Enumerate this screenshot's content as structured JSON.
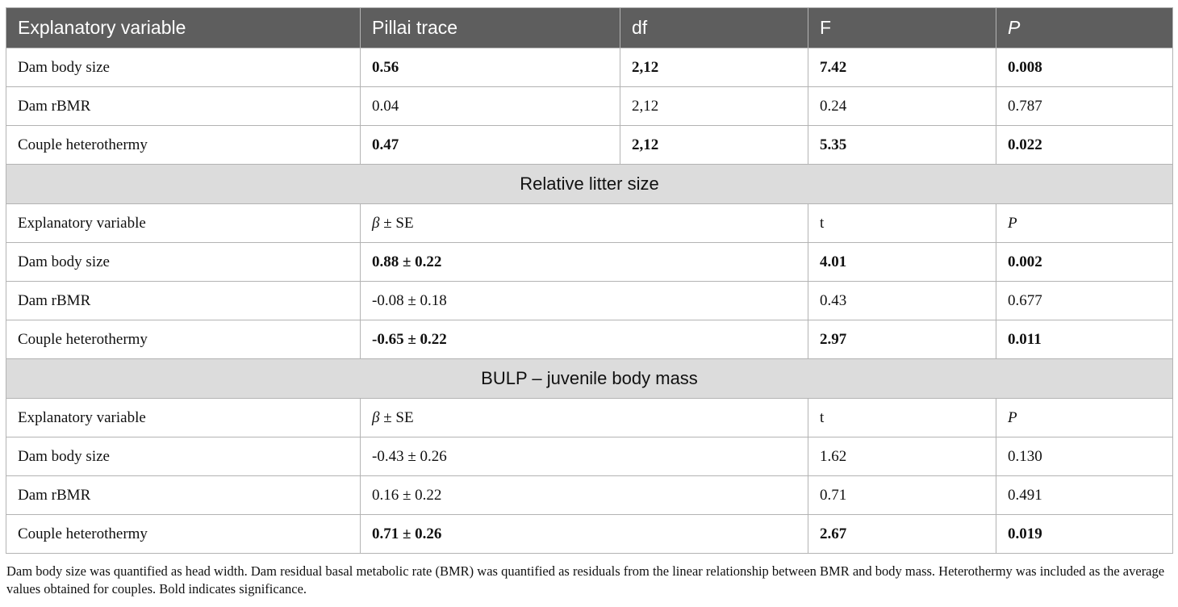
{
  "header": {
    "c1": "Explanatory variable",
    "c2": "Pillai trace",
    "c3": "df",
    "c4": "F",
    "c5": "P"
  },
  "manova_rows": [
    {
      "var": "Dam body size",
      "pillai": "0.56",
      "df": "2,12",
      "F": "7.42",
      "P": "0.008",
      "bold": true
    },
    {
      "var": "Dam rBMR",
      "pillai": "0.04",
      "df": "2,12",
      "F": "0.24",
      "P": "0.787",
      "bold": false
    },
    {
      "var": "Couple heterothermy",
      "pillai": "0.47",
      "df": "2,12",
      "F": "5.35",
      "P": "0.022",
      "bold": true
    }
  ],
  "sections": [
    {
      "title": "Relative litter size",
      "subheader": {
        "c1": "Explanatory variable",
        "c2": "β ± SE",
        "c3": "",
        "c4": "t",
        "c5": "P"
      },
      "rows": [
        {
          "var": "Dam body size",
          "beta": "0.88 ± 0.22",
          "t": "4.01",
          "P": "0.002",
          "bold": true
        },
        {
          "var": "Dam rBMR",
          "beta": "-0.08 ± 0.18",
          "t": "0.43",
          "P": "0.677",
          "bold": false
        },
        {
          "var": "Couple heterothermy",
          "beta": "-0.65 ± 0.22",
          "t": "2.97",
          "P": "0.011",
          "bold": true
        }
      ]
    },
    {
      "title": "BULP – juvenile body mass",
      "subheader": {
        "c1": "Explanatory variable",
        "c2": "β ± SE",
        "c3": "",
        "c4": "t",
        "c5": "P"
      },
      "rows": [
        {
          "var": "Dam body size",
          "beta": "-0.43 ± 0.26",
          "t": "1.62",
          "P": "0.130",
          "bold": false
        },
        {
          "var": "Dam rBMR",
          "beta": "0.16 ± 0.22",
          "t": "0.71",
          "P": "0.491",
          "bold": false
        },
        {
          "var": "Couple heterothermy",
          "beta": "0.71 ± 0.26",
          "t": "2.67",
          "P": "0.019",
          "bold": true
        }
      ]
    }
  ],
  "footnote": "Dam body size was quantified as head width. Dam residual basal metabolic rate (BMR) was quantified as residuals from the linear relationship between BMR and body mass. Heterothermy was included as the average values obtained for couples. Bold indicates significance."
}
